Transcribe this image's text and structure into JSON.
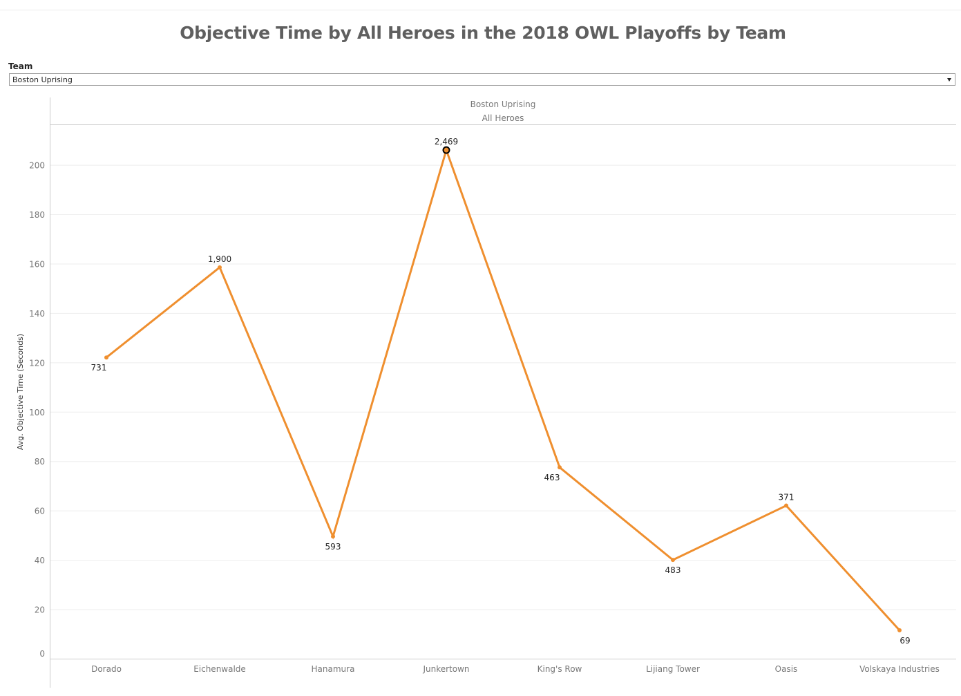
{
  "title": "Objective Time by All Heroes in the 2018 OWL Playoffs by Team",
  "filter": {
    "label": "Team",
    "selected": "Boston Uprising",
    "icon": "chevron-down-icon"
  },
  "pane": {
    "header_line1": "Boston Uprising",
    "header_line2": "All Heroes"
  },
  "colors": {
    "line": "#EF8F2F",
    "highlight_outline": "#000000",
    "grid": "#eeeeee",
    "axis": "#cccccc"
  },
  "chart_data": {
    "type": "line",
    "ylabel": "Avg. Objective Time (Seconds)",
    "ylim": [
      0,
      205
    ],
    "yticks": [
      0,
      20,
      40,
      60,
      80,
      100,
      120,
      140,
      160,
      180,
      200
    ],
    "grid": true,
    "categories": [
      "Dorado",
      "Eichenwalde",
      "Hanamura",
      "Junkertown",
      "King's Row",
      "Lijiang Tower",
      "Oasis",
      "Volskaya Industries"
    ],
    "series": [
      {
        "values": [
          122,
          158.5,
          49.5,
          206,
          77.5,
          40,
          62,
          11.5
        ],
        "labels": [
          "731",
          "1,900",
          "593",
          "2,469",
          "463",
          "483",
          "371",
          "69"
        ]
      }
    ],
    "highlighted_category": "Junkertown"
  }
}
